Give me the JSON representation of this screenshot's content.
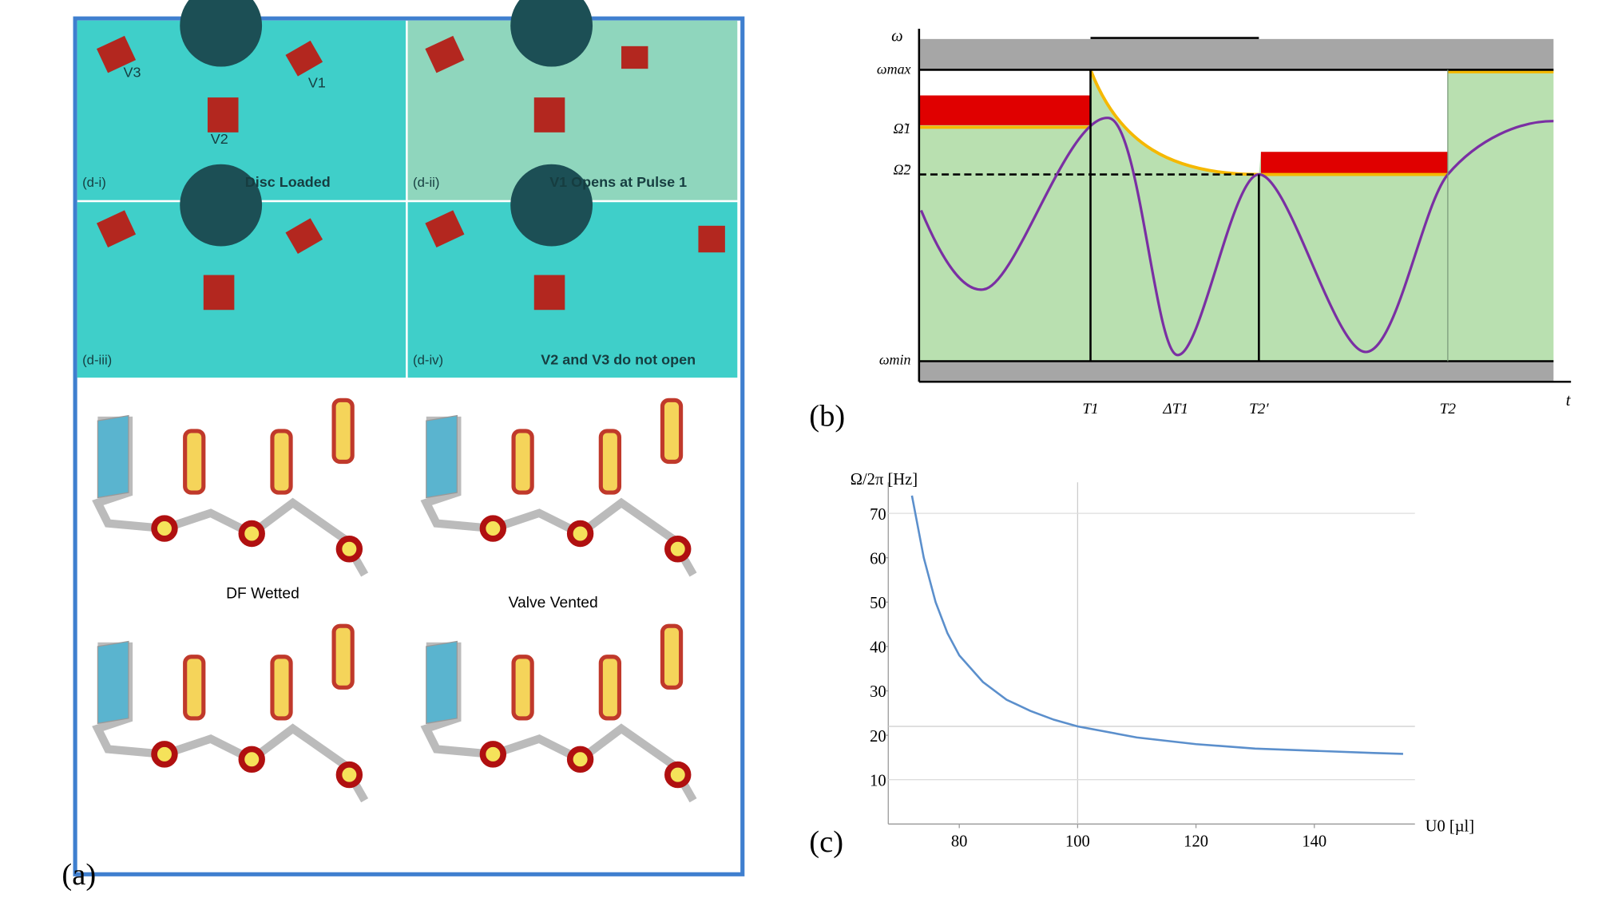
{
  "panel_a": {
    "label": "(a)",
    "photos": [
      {
        "tag": "(d-i)",
        "caption": "Disc Loaded"
      },
      {
        "tag": "(d-ii)",
        "caption": "V1 Opens at Pulse 1"
      },
      {
        "tag": "(d-iii)",
        "caption": ""
      },
      {
        "tag": "(d-iv)",
        "caption": "V2 and V3 do not open"
      }
    ],
    "valve_labels": [
      "V3",
      "V1",
      "V2"
    ],
    "annotations": [
      "DF Wetted",
      "Valve Vented"
    ]
  },
  "panel_b": {
    "label": "(b)",
    "y_axis": "ω",
    "x_axis": "t",
    "y_labels": [
      "ωmax",
      "Ω̃1",
      "Ω̃2",
      "ωmin"
    ],
    "x_labels": [
      "T1",
      "ΔT1",
      "T2′",
      "T2"
    ]
  },
  "chart_data": {
    "type": "line",
    "label": "(c)",
    "y_label": "Ω/2π [Hz]",
    "x_label": "U0 [µl]",
    "x": [
      72,
      74,
      76,
      78,
      80,
      84,
      88,
      92,
      96,
      100,
      110,
      120,
      130,
      140,
      150,
      155
    ],
    "series": [
      {
        "color": "#5b8fcc",
        "values": [
          74,
          60,
          50,
          43,
          38,
          32,
          28,
          25.5,
          23.5,
          22,
          19.5,
          18,
          17,
          16.5,
          16,
          15.8
        ]
      }
    ],
    "xlim": [
      68,
      157
    ],
    "ylim": [
      0,
      77
    ],
    "xticks": [
      80,
      100,
      120,
      140
    ],
    "yticks": [
      10,
      20,
      30,
      40,
      50,
      60,
      70
    ],
    "ref_x": 100,
    "ref_y": 22
  }
}
